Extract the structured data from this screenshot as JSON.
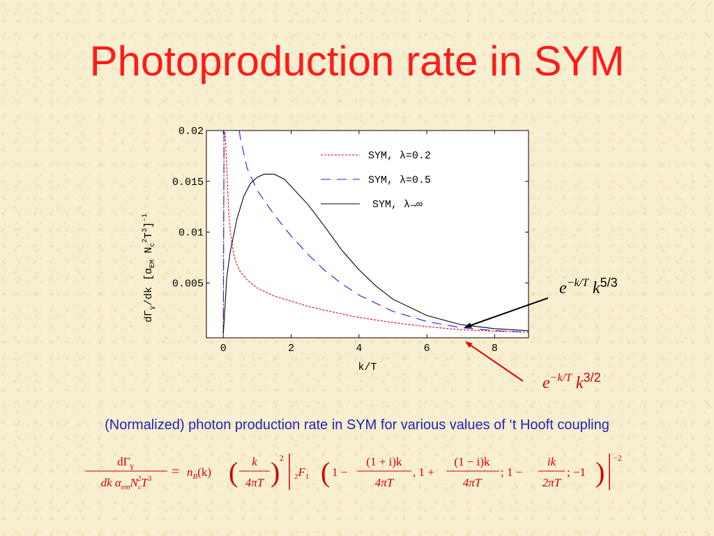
{
  "slide": {
    "title": "Photoproduction rate in SYM",
    "caption": "(Normalized) photon production rate in SYM for various values of ‘t Hooft coupling"
  },
  "annotations": {
    "upper": {
      "base": "e",
      "exp": "−k/T",
      "var": "k",
      "power": "5/3",
      "color": "#000000"
    },
    "lower": {
      "base": "e",
      "exp": "−k/T",
      "var": "k",
      "power": "3/2",
      "color": "#cc0000"
    }
  },
  "formula": {
    "lhs_num": "dΓ",
    "lhs_num_sub": "γ",
    "lhs_den": "dk α",
    "lhs_den_sub": "em",
    "lhs_den_rest": "N",
    "lhs_den_sub2": "c",
    "lhs_den_sup2": "2",
    "lhs_den_end": "T",
    "lhs_den_sup3": "3",
    "eq": "=",
    "nb": "n",
    "nb_sub": "B",
    "nb_arg": "(k)",
    "frac1_num": "k",
    "frac1_den": "4πT",
    "pow2": "2",
    "hyp_pre": "2",
    "hyp_F": "F",
    "hyp_post": "1",
    "t1": "1 −",
    "f2_num": "(1 + i)k",
    "f2_den": "4πT",
    "t2": ", 1 +",
    "f3_num": "(1 − i)k",
    "f3_den": "4πT",
    "t3": "; 1 −",
    "f4_num": "ik",
    "f4_den": "2πT",
    "t4": "; −1",
    "powm2": "−2",
    "color": "#cc0000"
  },
  "chart_data": {
    "type": "line",
    "xlabel": "k/T",
    "ylabel_parts": {
      "a": "dΓ",
      "b": "γ",
      "c": "/dk [α",
      "d": "EM",
      "e": " N",
      "f": "c",
      "g": "2",
      "h": "T",
      "i": "3",
      "j": "]",
      "k": "-1"
    },
    "xlim": [
      -0.5,
      9
    ],
    "ylim": [
      -0.0004,
      0.02
    ],
    "x_ticks": [
      {
        "v": 0,
        "label": "0"
      },
      {
        "v": 2,
        "label": "2"
      },
      {
        "v": 4,
        "label": "4"
      },
      {
        "v": 6,
        "label": "6"
      },
      {
        "v": 8,
        "label": "8"
      }
    ],
    "y_ticks": [
      {
        "v": 0.005,
        "label": "0.005"
      },
      {
        "v": 0.01,
        "label": "0.01"
      },
      {
        "v": 0.015,
        "label": "0.015"
      },
      {
        "v": 0.02,
        "label": "0.02"
      }
    ],
    "legend_position": "top-right",
    "grid": false,
    "series": [
      {
        "name": "SYM, λ=0.2",
        "color": "#e00000",
        "dash": "3,2",
        "x": [
          0,
          0.02,
          0.05,
          0.1,
          0.15,
          0.2,
          0.3,
          0.4,
          0.5,
          0.7,
          1.0,
          1.5,
          2.0,
          2.5,
          3.0,
          4.0,
          5.0,
          6.0,
          7.0,
          8.0,
          9.0
        ],
        "y": [
          0,
          0.02,
          0.02,
          0.0165,
          0.0125,
          0.0102,
          0.0079,
          0.0068,
          0.0061,
          0.0053,
          0.0045,
          0.0037,
          0.0032,
          0.0027,
          0.0023,
          0.0016,
          0.0011,
          0.0007,
          0.0004,
          0.00025,
          0.00015
        ]
      },
      {
        "name": "SYM, λ=0.5",
        "color": "#1a1aee",
        "dash": "14,9",
        "x": [
          0,
          0.02,
          0.05,
          0.1,
          0.3,
          0.45,
          0.5,
          0.7,
          1.0,
          1.5,
          2.0,
          2.5,
          3.0,
          3.5,
          4.0,
          5.0,
          6.0,
          7.0,
          8.0,
          9.0
        ],
        "y": [
          0,
          0.02,
          0.02,
          0.02,
          0.02,
          0.0205,
          0.0193,
          0.0163,
          0.0141,
          0.0117,
          0.0096,
          0.0078,
          0.0062,
          0.0049,
          0.0038,
          0.0022,
          0.0012,
          0.0006,
          0.0003,
          0.00015
        ]
      },
      {
        "name": "SYM, λ→∞",
        "color": "#000000",
        "dash": "",
        "x": [
          0,
          0.1,
          0.2,
          0.4,
          0.6,
          0.8,
          1.0,
          1.2,
          1.5,
          1.8,
          2.0,
          2.5,
          3.0,
          3.5,
          4.0,
          4.5,
          5.0,
          6.0,
          7.0,
          8.0,
          9.0
        ],
        "y": [
          0,
          0.0055,
          0.008,
          0.0113,
          0.0135,
          0.0148,
          0.0154,
          0.0157,
          0.0157,
          0.0152,
          0.0145,
          0.0127,
          0.0105,
          0.0082,
          0.0063,
          0.0047,
          0.0034,
          0.0018,
          0.0009,
          0.0005,
          0.0003
        ]
      }
    ]
  }
}
